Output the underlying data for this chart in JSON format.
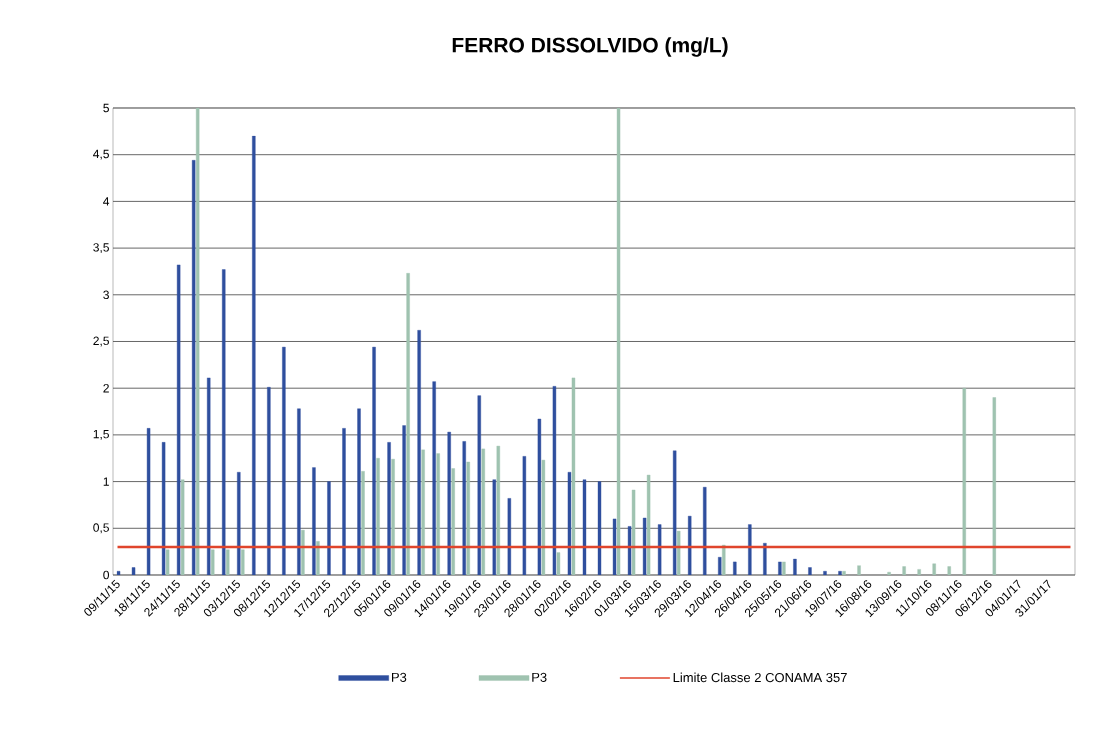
{
  "chart_data": {
    "type": "bar",
    "title": "FERRO DISSOLVIDO (mg/L)",
    "categories": [
      "09/11/15",
      null,
      "18/11/15",
      null,
      "24/11/15",
      null,
      "28/11/15",
      null,
      "03/12/15",
      null,
      "08/12/15",
      null,
      "12/12/15",
      null,
      "17/12/15",
      null,
      "22/12/15",
      null,
      "05/01/16",
      null,
      "09/01/16",
      null,
      "14/01/16",
      null,
      "19/01/16",
      null,
      "23/01/16",
      null,
      "28/01/16",
      null,
      "02/02/16",
      null,
      "16/02/16",
      null,
      "01/03/16",
      null,
      "15/03/16",
      null,
      "29/03/16",
      null,
      "12/04/16",
      null,
      "26/04/16",
      null,
      "25/05/16",
      null,
      "21/06/16",
      null,
      "19/07/16",
      null,
      "16/08/16",
      null,
      "13/09/16",
      null,
      "11/10/16",
      null,
      "08/11/16",
      null,
      "06/12/16",
      null,
      "04/01/17",
      null,
      "31/01/17",
      null
    ],
    "series": [
      {
        "name": "P3",
        "color": "#2f4f9e",
        "values": [
          0.04,
          0.08,
          1.57,
          1.42,
          3.32,
          4.44,
          2.11,
          3.27,
          1.1,
          4.7,
          2.01,
          2.44,
          1.78,
          1.15,
          1.0,
          1.57,
          1.78,
          2.44,
          1.42,
          1.6,
          2.62,
          2.07,
          1.53,
          1.43,
          1.92,
          1.02,
          0.82,
          1.27,
          1.67,
          2.02,
          1.1,
          1.02,
          1.0,
          0.6,
          0.52,
          0.61,
          0.54,
          1.33,
          0.63,
          0.94,
          0.19,
          0.14,
          0.54,
          0.34,
          0.14,
          0.17,
          0.08,
          0.04,
          0.04,
          null,
          null,
          null,
          null,
          null,
          null,
          null,
          null,
          null,
          null,
          null,
          null,
          null,
          null,
          null
        ]
      },
      {
        "name": "P3",
        "color": "#9fc3b0",
        "values": [
          null,
          null,
          null,
          0.27,
          1.02,
          5.0,
          0.27,
          0.27,
          0.27,
          null,
          null,
          null,
          0.48,
          0.36,
          null,
          null,
          1.11,
          1.25,
          1.24,
          3.23,
          1.34,
          1.3,
          1.14,
          1.21,
          1.35,
          1.38,
          null,
          null,
          1.23,
          0.24,
          2.11,
          null,
          null,
          5.0,
          0.91,
          1.07,
          null,
          0.47,
          null,
          null,
          0.32,
          null,
          null,
          null,
          0.14,
          null,
          null,
          null,
          0.04,
          0.1,
          null,
          0.03,
          0.09,
          0.06,
          0.12,
          0.09,
          2.0,
          null,
          1.9,
          null,
          null,
          null,
          null,
          null
        ]
      }
    ],
    "ylim": [
      0,
      5
    ],
    "yticks": [
      0,
      {
        "value": 0.5,
        "label": "0,5"
      },
      1,
      {
        "value": 1.5,
        "label": "1,5"
      },
      2,
      {
        "value": 2.5,
        "label": "2,5"
      },
      3,
      {
        "value": 3.5,
        "label": "3,5"
      },
      4,
      {
        "value": 4.5,
        "label": "4,5"
      },
      5
    ],
    "ref_lines": [
      {
        "axis": "y",
        "value": 0.3,
        "label": "Limite Classe 2 CONAMA 357",
        "color": "#e0452c"
      }
    ],
    "grid": "y",
    "legend": "bottom"
  }
}
